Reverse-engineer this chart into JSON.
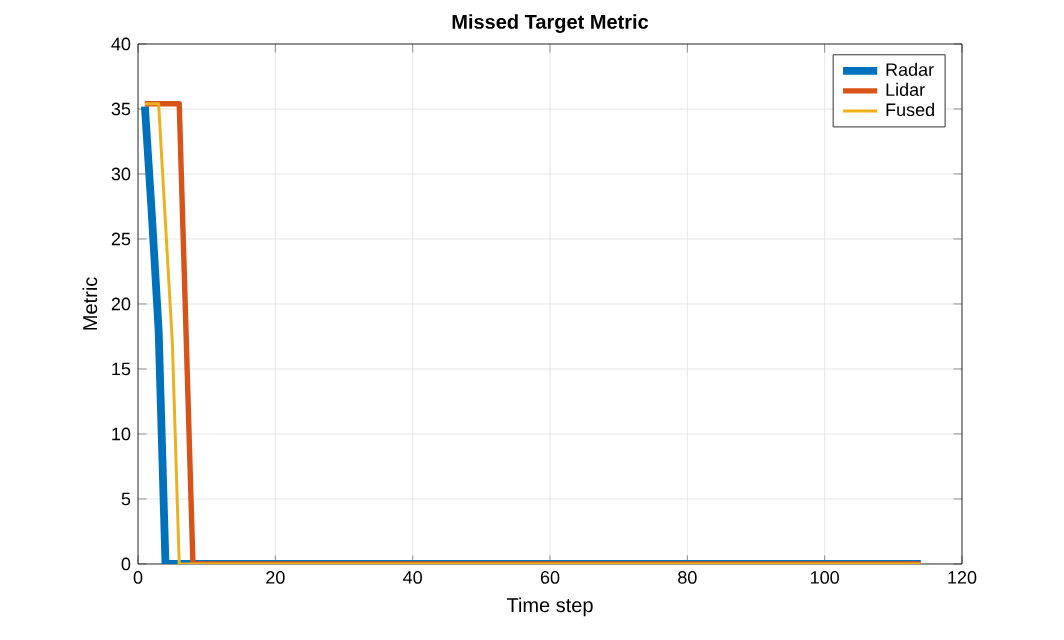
{
  "chart_data": {
    "type": "line",
    "title": "Missed Target Metric",
    "xlabel": "Time step",
    "ylabel": "Metric",
    "xlim": [
      0,
      120
    ],
    "xticks": [
      0,
      20,
      40,
      60,
      80,
      100,
      120
    ],
    "ylim": [
      0,
      40
    ],
    "yticks": [
      0,
      5,
      10,
      15,
      20,
      25,
      30,
      35,
      40
    ],
    "grid": true,
    "legend": "top right",
    "marker": "none",
    "line_style": "solid",
    "series": [
      {
        "name": "Radar",
        "color": "#0072bd",
        "x": [
          1,
          2,
          3,
          4,
          114
        ],
        "values": [
          35.2,
          27,
          18,
          0,
          0
        ]
      },
      {
        "name": "Lidar",
        "color": "#d95319",
        "x": [
          1,
          6,
          8,
          114
        ],
        "values": [
          35.4,
          35.4,
          0,
          0
        ]
      },
      {
        "name": "Fused",
        "color": "#edb120",
        "x": [
          1,
          3,
          5,
          6,
          114
        ],
        "values": [
          35.4,
          35.4,
          17,
          0,
          0
        ]
      }
    ]
  }
}
